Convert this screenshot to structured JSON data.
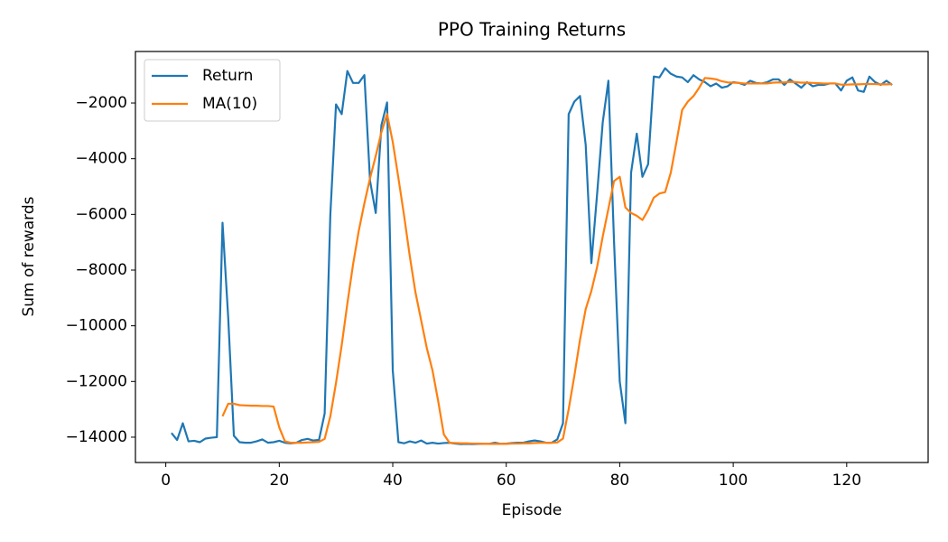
{
  "chart_data": {
    "type": "line",
    "title": "PPO Training Returns",
    "x_label": "Episode",
    "y_label": "Sum of rewards",
    "x": [
      1,
      2,
      3,
      4,
      5,
      6,
      7,
      8,
      9,
      10,
      11,
      12,
      13,
      14,
      15,
      16,
      17,
      18,
      19,
      20,
      21,
      22,
      23,
      24,
      25,
      26,
      27,
      28,
      29,
      30,
      31,
      32,
      33,
      34,
      35,
      36,
      37,
      38,
      39,
      40,
      41,
      42,
      43,
      44,
      45,
      46,
      47,
      48,
      49,
      50,
      51,
      52,
      53,
      54,
      55,
      56,
      57,
      58,
      59,
      60,
      61,
      62,
      63,
      64,
      65,
      66,
      67,
      68,
      69,
      70,
      71,
      72,
      73,
      74,
      75,
      76,
      77,
      78,
      79,
      80,
      81,
      82,
      83,
      84,
      85,
      86,
      87,
      88,
      89,
      90,
      91,
      92,
      93,
      94,
      95,
      96,
      97,
      98,
      99,
      100,
      101,
      102,
      103,
      104,
      105,
      106,
      107,
      108,
      109,
      110,
      111,
      112,
      113,
      114,
      115,
      116,
      117,
      118,
      119,
      120,
      121,
      122,
      123,
      124,
      125,
      126,
      127,
      128
    ],
    "series": [
      {
        "name": "Return",
        "color": "#1f77b4",
        "values": [
          -13850,
          -14100,
          -13500,
          -14150,
          -14130,
          -14180,
          -14050,
          -14020,
          -14000,
          -6300,
          -9700,
          -13950,
          -14180,
          -14200,
          -14200,
          -14150,
          -14080,
          -14200,
          -14180,
          -14130,
          -14200,
          -14220,
          -14200,
          -14100,
          -14060,
          -14120,
          -14100,
          -13150,
          -6000,
          -2050,
          -2400,
          -850,
          -1280,
          -1280,
          -1000,
          -4800,
          -5950,
          -2800,
          -1980,
          -11600,
          -14180,
          -14220,
          -14150,
          -14200,
          -14120,
          -14230,
          -14200,
          -14230,
          -14210,
          -14200,
          -14230,
          -14250,
          -14240,
          -14250,
          -14240,
          -14240,
          -14240,
          -14200,
          -14240,
          -14230,
          -14210,
          -14200,
          -14200,
          -14150,
          -14120,
          -14150,
          -14200,
          -14200,
          -14080,
          -13500,
          -2400,
          -1950,
          -1750,
          -3500,
          -7750,
          -5300,
          -2700,
          -1200,
          -7000,
          -12000,
          -13500,
          -4500,
          -3100,
          -4650,
          -4200,
          -1050,
          -1080,
          -750,
          -950,
          -1050,
          -1080,
          -1250,
          -1000,
          -1150,
          -1250,
          -1400,
          -1300,
          -1450,
          -1400,
          -1250,
          -1280,
          -1350,
          -1200,
          -1280,
          -1300,
          -1250,
          -1150,
          -1150,
          -1350,
          -1150,
          -1300,
          -1450,
          -1250,
          -1400,
          -1350,
          -1350,
          -1300,
          -1300,
          -1550,
          -1200,
          -1080,
          -1550,
          -1600,
          -1050,
          -1250,
          -1350,
          -1200,
          -1350
        ]
      },
      {
        "name": "MA(10)",
        "color": "#ff7f0e",
        "values": [
          null,
          null,
          null,
          null,
          null,
          null,
          null,
          null,
          null,
          -13250,
          -12800,
          -12800,
          -12850,
          -12860,
          -12870,
          -12870,
          -12880,
          -12880,
          -12900,
          -13650,
          -14150,
          -14200,
          -14200,
          -14200,
          -14190,
          -14180,
          -14170,
          -14060,
          -13250,
          -12050,
          -10700,
          -9200,
          -7800,
          -6600,
          -5600,
          -4700,
          -3900,
          -3050,
          -2400,
          -3400,
          -4700,
          -6050,
          -7500,
          -8800,
          -9800,
          -10800,
          -11600,
          -12700,
          -13900,
          -14200,
          -14210,
          -14220,
          -14220,
          -14230,
          -14230,
          -14240,
          -14240,
          -14240,
          -14240,
          -14240,
          -14230,
          -14230,
          -14220,
          -14220,
          -14210,
          -14200,
          -14200,
          -14200,
          -14190,
          -14050,
          -13000,
          -11800,
          -10500,
          -9400,
          -8750,
          -7900,
          -6800,
          -5800,
          -4800,
          -4650,
          -5750,
          -5950,
          -6050,
          -6200,
          -5850,
          -5400,
          -5250,
          -5200,
          -4500,
          -3400,
          -2250,
          -1950,
          -1750,
          -1450,
          -1100,
          -1120,
          -1150,
          -1220,
          -1260,
          -1270,
          -1280,
          -1300,
          -1300,
          -1300,
          -1300,
          -1300,
          -1270,
          -1260,
          -1260,
          -1240,
          -1250,
          -1270,
          -1270,
          -1280,
          -1290,
          -1300,
          -1300,
          -1300,
          -1340,
          -1340,
          -1330,
          -1330,
          -1320,
          -1320,
          -1320,
          -1330,
          -1330,
          -1320
        ]
      }
    ],
    "xlim": [
      -5.35,
      134.35
    ],
    "ylim": [
      -14910,
      -150
    ],
    "xticks": [
      0,
      20,
      40,
      60,
      80,
      100,
      120
    ],
    "yticks": [
      {
        "value": -14000,
        "label": "−14000"
      },
      {
        "value": -12000,
        "label": "−12000"
      },
      {
        "value": -10000,
        "label": "−10000"
      },
      {
        "value": -8000,
        "label": "−8000"
      },
      {
        "value": -6000,
        "label": "−6000"
      },
      {
        "value": -4000,
        "label": "−4000"
      },
      {
        "value": -2000,
        "label": "−2000"
      }
    ],
    "legend": "upper left"
  }
}
